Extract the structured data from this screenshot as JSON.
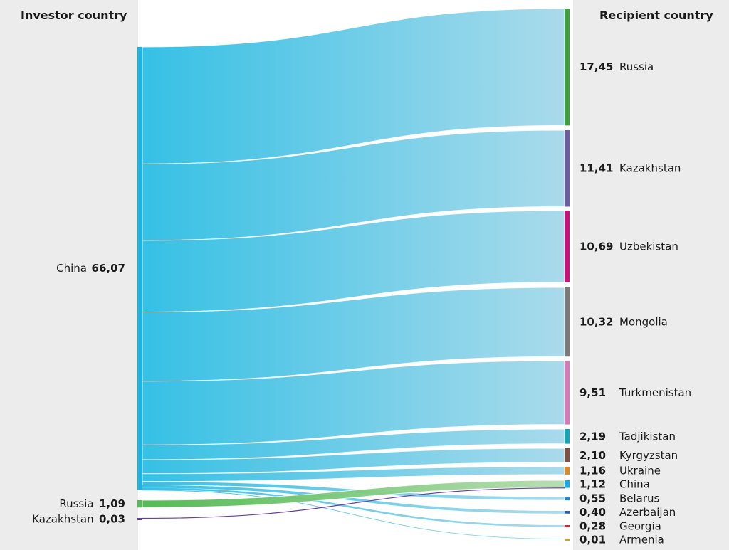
{
  "headers": {
    "investor": "Investor country",
    "recipient": "Recipient country"
  },
  "chart_data": {
    "type": "sankey",
    "sources": [
      {
        "name": "China",
        "value": "66,07",
        "color": "#1fb4e0"
      },
      {
        "name": "Russia",
        "value": "1,09",
        "color": "#5cb85c"
      },
      {
        "name": "Kazakhstan",
        "value": "0,03",
        "color": "#6a3f9e"
      }
    ],
    "targets": [
      {
        "name": "Russia",
        "value": "17,45",
        "color": "#3f9e3f"
      },
      {
        "name": "Kazakhstan",
        "value": "11,41",
        "color": "#6b5fa0"
      },
      {
        "name": "Uzbekistan",
        "value": "10,69",
        "color": "#c2157a"
      },
      {
        "name": "Mongolia",
        "value": "10,32",
        "color": "#7a7a7a"
      },
      {
        "name": "Turkmenistan",
        "value": "9,51",
        "color": "#d17cb6"
      },
      {
        "name": "Tadjikistan",
        "value": "2,19",
        "color": "#1aa3b5"
      },
      {
        "name": "Kyrgyzstan",
        "value": "2,10",
        "color": "#7a5244"
      },
      {
        "name": "Ukraine",
        "value": "1,16",
        "color": "#d38a2e"
      },
      {
        "name": "China",
        "value": "1,12",
        "color": "#1ba7de"
      },
      {
        "name": "Belarus",
        "value": "0,55",
        "color": "#2a86c2"
      },
      {
        "name": "Azerbaijan",
        "value": "0,40",
        "color": "#2c5fa8"
      },
      {
        "name": "Georgia",
        "value": "0,28",
        "color": "#c42a3c"
      },
      {
        "name": "Armenia",
        "value": "0,01",
        "color": "#c9a227"
      }
    ],
    "flows": [
      {
        "source": "China",
        "target": "Russia",
        "value": 17.45
      },
      {
        "source": "China",
        "target": "Kazakhstan",
        "value": 11.41
      },
      {
        "source": "China",
        "target": "Uzbekistan",
        "value": 10.69
      },
      {
        "source": "China",
        "target": "Mongolia",
        "value": 10.32
      },
      {
        "source": "China",
        "target": "Turkmenistan",
        "value": 9.51
      },
      {
        "source": "China",
        "target": "Tadjikistan",
        "value": 2.19
      },
      {
        "source": "China",
        "target": "Kyrgyzstan",
        "value": 2.1
      },
      {
        "source": "China",
        "target": "Ukraine",
        "value": 1.16
      },
      {
        "source": "China",
        "target": "Belarus",
        "value": 0.55
      },
      {
        "source": "China",
        "target": "Azerbaijan",
        "value": 0.4
      },
      {
        "source": "China",
        "target": "Georgia",
        "value": 0.28
      },
      {
        "source": "China",
        "target": "Armenia",
        "value": 0.01
      },
      {
        "source": "Russia",
        "target": "China",
        "value": 1.09
      },
      {
        "source": "Kazakhstan",
        "target": "China",
        "value": 0.03
      }
    ]
  }
}
